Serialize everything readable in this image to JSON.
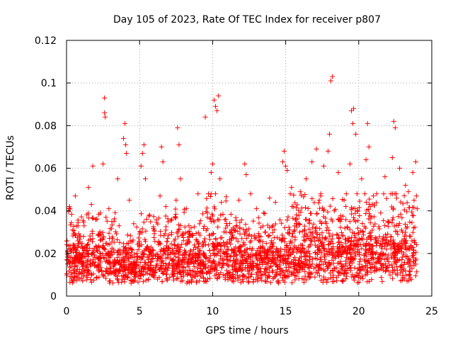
{
  "chart_data": {
    "type": "scatter",
    "title": "Day 105 of 2023, Rate Of TEC Index for receiver p807",
    "xlabel": "GPS time / hours",
    "ylabel": "ROTI / TECUs",
    "xlim": [
      0,
      25
    ],
    "ylim": [
      0,
      0.12
    ],
    "xticks": [
      0,
      5,
      10,
      15,
      20,
      25
    ],
    "xtick_labels": [
      "0",
      "5",
      "10",
      "15",
      "20",
      "25"
    ],
    "yticks": [
      0,
      0.02,
      0.04,
      0.06,
      0.08,
      0.1,
      0.12
    ],
    "ytick_labels": [
      "0",
      "0.02",
      "0.04",
      "0.06",
      "0.08",
      "0.1",
      "0.12"
    ],
    "grid": true,
    "marker": "plus",
    "color": "#ff0000",
    "series": [
      {
        "name": "ROTI",
        "x": [
          0.2,
          0.4,
          0.6,
          0.9,
          1.2,
          1.5,
          1.7,
          1.8,
          2.0,
          2.2,
          2.5,
          2.6,
          2.6,
          2.65,
          2.7,
          2.9,
          3.1,
          3.5,
          3.6,
          3.9,
          4.0,
          4.05,
          4.1,
          4.3,
          4.6,
          5.1,
          5.2,
          5.3,
          5.4,
          5.7,
          6.0,
          6.4,
          6.5,
          6.6,
          6.8,
          7.2,
          7.5,
          7.6,
          7.7,
          7.8,
          8.2,
          8.6,
          9.0,
          9.5,
          9.9,
          10.0,
          10.1,
          10.2,
          10.3,
          10.4,
          10.5,
          10.6,
          10.9,
          11.4,
          11.8,
          12.2,
          12.3,
          12.6,
          13.0,
          13.5,
          13.9,
          14.3,
          14.8,
          14.9,
          15.0,
          15.1,
          15.4,
          15.7,
          16.0,
          16.4,
          16.8,
          17.1,
          17.3,
          17.6,
          17.9,
          18.0,
          18.1,
          18.2,
          18.6,
          19.0,
          19.4,
          19.5,
          19.6,
          19.65,
          19.8,
          20.2,
          20.5,
          20.6,
          20.7,
          21.0,
          21.5,
          21.8,
          22.2,
          22.3,
          22.4,
          22.5,
          22.8,
          23.2,
          23.4,
          23.7,
          23.9,
          23.95,
          24.0,
          0.5,
          3.0,
          5.5,
          8.0,
          12.0,
          14.0,
          16.5,
          18.5,
          21.2,
          23.0,
          1.0,
          6.2,
          11.0,
          13.3,
          17.7,
          20.9
        ],
        "y": [
          0.042,
          0.031,
          0.047,
          0.028,
          0.033,
          0.051,
          0.043,
          0.061,
          0.036,
          0.029,
          0.062,
          0.086,
          0.093,
          0.084,
          0.037,
          0.041,
          0.035,
          0.055,
          0.033,
          0.074,
          0.081,
          0.071,
          0.067,
          0.045,
          0.034,
          0.061,
          0.067,
          0.071,
          0.055,
          0.038,
          0.031,
          0.047,
          0.07,
          0.063,
          0.042,
          0.036,
          0.045,
          0.079,
          0.071,
          0.055,
          0.041,
          0.029,
          0.048,
          0.084,
          0.058,
          0.062,
          0.092,
          0.089,
          0.087,
          0.094,
          0.055,
          0.044,
          0.036,
          0.032,
          0.045,
          0.062,
          0.057,
          0.048,
          0.041,
          0.039,
          0.046,
          0.044,
          0.063,
          0.068,
          0.061,
          0.059,
          0.051,
          0.036,
          0.049,
          0.055,
          0.063,
          0.069,
          0.045,
          0.061,
          0.068,
          0.076,
          0.101,
          0.103,
          0.058,
          0.045,
          0.062,
          0.087,
          0.081,
          0.088,
          0.076,
          0.055,
          0.064,
          0.081,
          0.07,
          0.047,
          0.039,
          0.056,
          0.048,
          0.065,
          0.082,
          0.079,
          0.06,
          0.052,
          0.049,
          0.058,
          0.063,
          0.047,
          0.041,
          0.024,
          0.021,
          0.023,
          0.026,
          0.027,
          0.025,
          0.028,
          0.029,
          0.027,
          0.03,
          0.018,
          0.015,
          0.017,
          0.019,
          0.016,
          0.022
        ]
      }
    ]
  }
}
